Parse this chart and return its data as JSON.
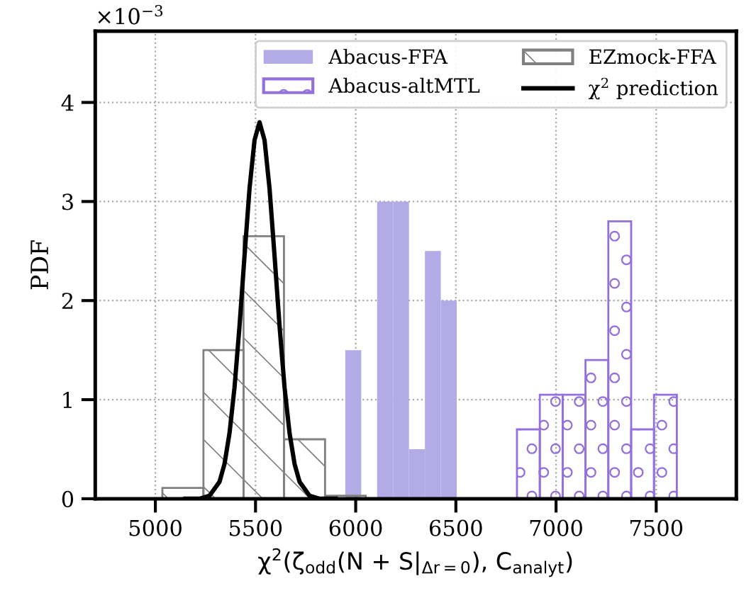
{
  "chart_data": {
    "type": "histogram",
    "xlabel": "χ$^{2}$(ζ$_{odd}$(N + S|$_{Δr=0}$), C$_{analyt}$)",
    "ylabel": "PDF",
    "annotations": [
      "×10$^{−3}$"
    ],
    "series": [
      {
        "name": "Abacus-FFA",
        "color": "#b3abe6",
        "bins": [
          5948,
          6027.5,
          6107,
          6186.5,
          6266,
          6345.5,
          6425,
          6504.5
        ],
        "values": [
          1.5,
          0,
          3.0,
          3.0,
          0.5,
          2.5,
          2.0
        ]
      },
      {
        "name": "Abacus-altMTL",
        "color": "#9370db",
        "bins": [
          6805,
          6919,
          7033,
          7147,
          7261,
          7375,
          7489,
          7603
        ],
        "values": [
          0.7,
          1.05,
          1.05,
          1.4,
          2.8,
          0.7,
          1.05
        ]
      },
      {
        "name": "EZmock-FFA",
        "color": "#808080",
        "bins": [
          5035,
          5240,
          5440,
          5642,
          5847,
          6050
        ],
        "values": [
          0.11,
          1.5,
          2.65,
          0.6,
          0.03
        ]
      },
      {
        "name": "χ$^{2}$ prediction",
        "type": "line",
        "color": "#000000",
        "x": [
          5150,
          5220,
          5270,
          5320,
          5345,
          5370,
          5395,
          5420,
          5445,
          5470,
          5495,
          5520,
          5545,
          5570,
          5595,
          5620,
          5645,
          5670,
          5695,
          5720,
          5770,
          5820,
          5900
        ],
        "values": [
          0,
          0,
          0.03,
          0.17,
          0.35,
          0.66,
          1.12,
          1.74,
          2.45,
          3.13,
          3.62,
          3.8,
          3.62,
          3.13,
          2.45,
          1.74,
          1.12,
          0.66,
          0.35,
          0.17,
          0.03,
          0,
          0
        ]
      }
    ],
    "xlim": [
      4700,
      7900
    ],
    "xticks": [
      5000,
      5500,
      6000,
      6500,
      7000,
      7500
    ],
    "ylim": [
      0,
      4.72
    ],
    "yticks": [
      0,
      1,
      2,
      3,
      4
    ],
    "grid": true,
    "legend": "top right",
    "line_style": "solid"
  }
}
